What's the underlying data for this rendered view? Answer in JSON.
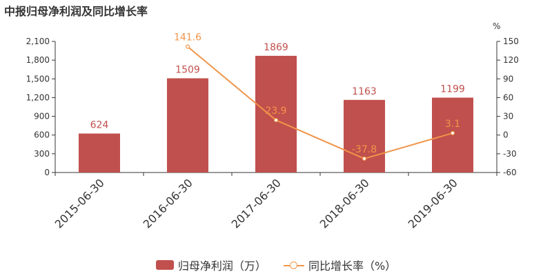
{
  "title": "中报归母净利润及同比增长率",
  "colors": {
    "bar": "#c0504d",
    "line": "#f0954a",
    "axis": "#333333",
    "label_bar": "#c0504d",
    "label_line": "#f0954a"
  },
  "chart_data": {
    "type": "bar",
    "title": "中报归母净利润及同比增长率",
    "categories": [
      "2015-06-30",
      "2016-06-30",
      "2017-06-30",
      "2018-06-30",
      "2019-06-30"
    ],
    "series": [
      {
        "name": "归母净利润（万）",
        "type": "bar",
        "axis": "left",
        "values": [
          624,
          1509,
          1869,
          1163,
          1199
        ]
      },
      {
        "name": "同比增长率（%）",
        "type": "line",
        "axis": "right",
        "values": [
          null,
          141.6,
          23.9,
          -37.8,
          3.1
        ]
      }
    ],
    "y_left": {
      "min": 0,
      "max": 2100,
      "ticks": [
        "0",
        "300",
        "600",
        "900",
        "1,200",
        "1,500",
        "1,800",
        "2,100"
      ]
    },
    "y_right": {
      "unit": "%",
      "min": -60,
      "max": 150,
      "ticks": [
        "-60",
        "-30",
        "0",
        "30",
        "60",
        "90",
        "120",
        "150"
      ]
    },
    "bar_labels": [
      "624",
      "1509",
      "1869",
      "1163",
      "1199"
    ],
    "line_labels": [
      null,
      "141.6",
      "23.9",
      "-37.8",
      "3.1"
    ],
    "legend": [
      "归母净利润（万）",
      "同比增长率（%）"
    ],
    "grid": false,
    "legend_position": "bottom"
  }
}
